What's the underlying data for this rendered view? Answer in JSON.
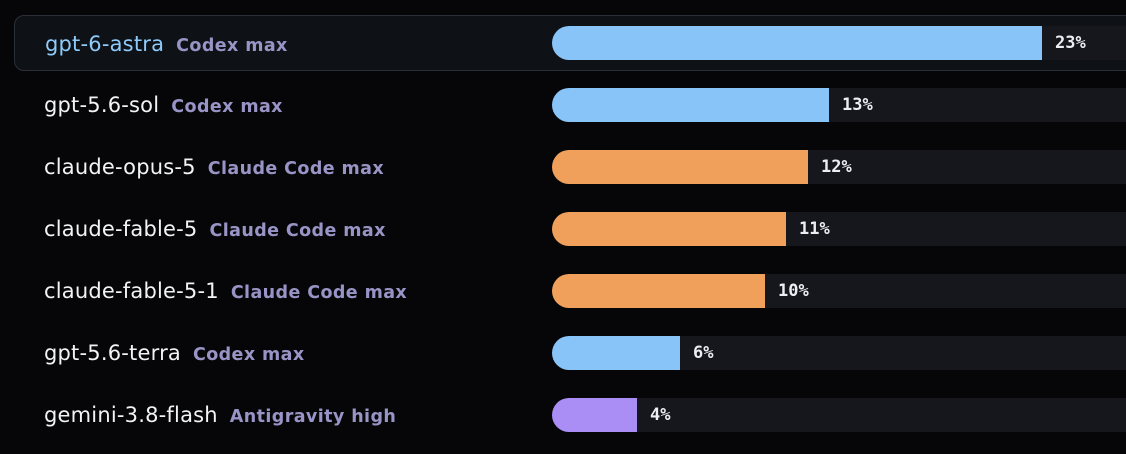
{
  "chart_data": {
    "type": "bar",
    "orientation": "horizontal",
    "selected_index": 0,
    "xlim": [
      0,
      23
    ],
    "categories": [
      {
        "model": "gpt-6-astra",
        "harness": "Codex max",
        "value": 23,
        "label": "23%",
        "color": "#88c4f8"
      },
      {
        "model": "gpt-5.6-sol",
        "harness": "Codex max",
        "value": 13,
        "label": "13%",
        "color": "#88c4f8"
      },
      {
        "model": "claude-opus-5",
        "harness": "Claude Code max",
        "value": 12,
        "label": "12%",
        "color": "#f0a05a"
      },
      {
        "model": "claude-fable-5",
        "harness": "Claude Code max",
        "value": 11,
        "label": "11%",
        "color": "#f0a05a"
      },
      {
        "model": "claude-fable-5-1",
        "harness": "Claude Code max",
        "value": 10,
        "label": "10%",
        "color": "#f0a05a"
      },
      {
        "model": "gpt-5.6-terra",
        "harness": "Codex max",
        "value": 6,
        "label": "6%",
        "color": "#88c4f8"
      },
      {
        "model": "gemini-3.8-flash",
        "harness": "Antigravity high",
        "value": 4,
        "label": "4%",
        "color": "#aa8ef5"
      }
    ]
  }
}
